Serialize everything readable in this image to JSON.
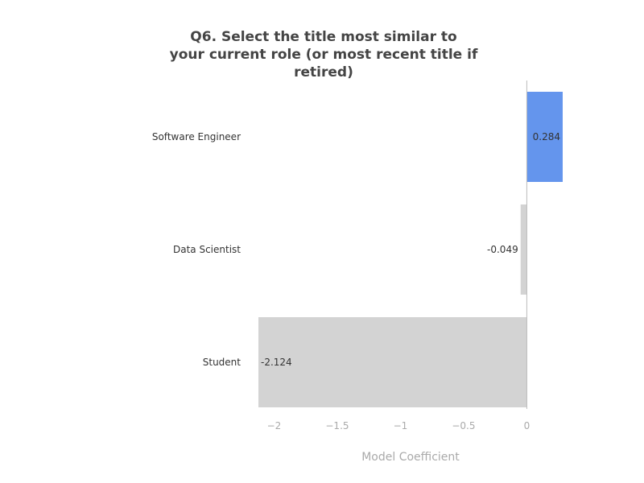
{
  "chart_data": {
    "type": "bar",
    "orientation": "horizontal",
    "title": "Q6. Select the title most similar to your current role (or most recent title if retired)",
    "title_lines": [
      "Q6. Select the title most similar to",
      "your current role (or most recent title if",
      "retired)"
    ],
    "categories": [
      "Software Engineer",
      "Data Scientist",
      "Student"
    ],
    "values": [
      0.284,
      -0.049,
      -2.124
    ],
    "data_labels": [
      "0.284",
      "-0.049",
      "-2.124"
    ],
    "bar_colors": [
      "#6495ed",
      "#d3d3d3",
      "#d3d3d3"
    ],
    "xlabel": "Model Coefficient",
    "ylabel": "",
    "xlim": [
      -2.124,
      0.284
    ],
    "x_ticks": [
      -2,
      -1.5,
      -1,
      -0.5,
      0
    ],
    "x_tick_labels": [
      "−2",
      "−1.5",
      "−1",
      "−0.5",
      "0"
    ],
    "grid": false,
    "legend": "none"
  }
}
